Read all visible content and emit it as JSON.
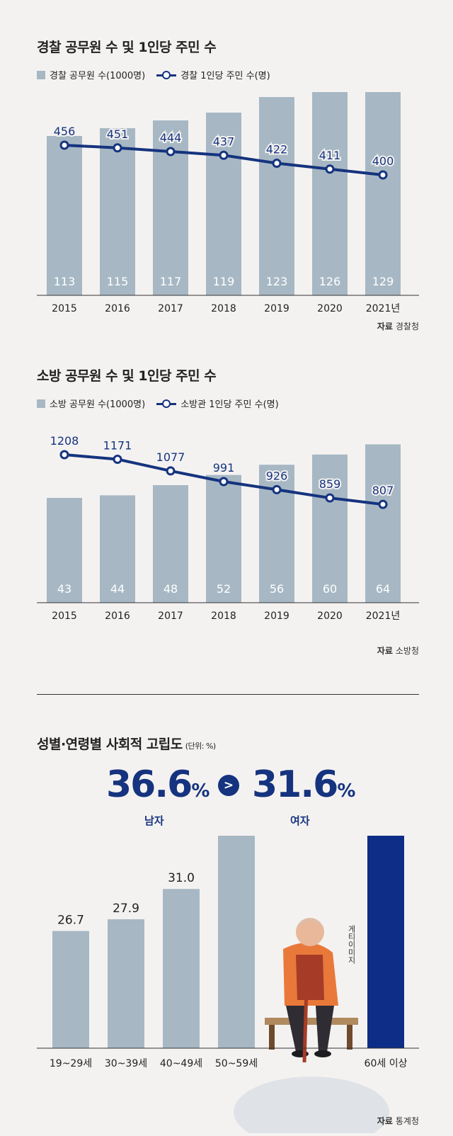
{
  "colors": {
    "bar": "#a7b8c4",
    "line": "#15337e",
    "highlight": "#0d2d86"
  },
  "chart_data": [
    {
      "type": "bar+line",
      "title": "경찰 공무원 수 및 1인당 주민 수",
      "categories": [
        "2015",
        "2016",
        "2017",
        "2018",
        "2019",
        "2020",
        "2021년"
      ],
      "series": [
        {
          "name": "경찰 공무원 수(1000명)",
          "type": "bar",
          "values": [
            113,
            115,
            117,
            119,
            123,
            126,
            129
          ]
        },
        {
          "name": "경찰 1인당 주민 수(명)",
          "type": "line",
          "values": [
            456,
            451,
            444,
            437,
            422,
            411,
            400
          ]
        }
      ],
      "source_label": "자료",
      "source": "경찰청"
    },
    {
      "type": "bar+line",
      "title": "소방 공무원 수 및 1인당 주민 수",
      "categories": [
        "2015",
        "2016",
        "2017",
        "2018",
        "2019",
        "2020",
        "2021년"
      ],
      "series": [
        {
          "name": "소방 공무원 수(1000명)",
          "type": "bar",
          "values": [
            43,
            44,
            48,
            52,
            56,
            60,
            64
          ]
        },
        {
          "name": "소방관 1인당 주민 수(명)",
          "type": "line",
          "values": [
            1208,
            1171,
            1077,
            991,
            926,
            859,
            807
          ]
        }
      ],
      "source_label": "자료",
      "source": "소방청"
    },
    {
      "type": "bar",
      "title": "성별·연령별 사회적 고립도",
      "unit": "(단위: %)",
      "categories": [
        "19~29세",
        "30~39세",
        "40~49세",
        "50~59세",
        "60세 이상"
      ],
      "values": [
        26.7,
        27.9,
        31.0,
        37.1,
        41.6
      ],
      "highlight": "60세 이상",
      "sex": {
        "male_value": "36.6",
        "male_label": "남자",
        "female_value": "31.6",
        "female_label": "여자",
        "pct": "%",
        "compare": ">"
      },
      "credit": "게티이미지",
      "source_label": "자료",
      "source": "통계청"
    }
  ]
}
